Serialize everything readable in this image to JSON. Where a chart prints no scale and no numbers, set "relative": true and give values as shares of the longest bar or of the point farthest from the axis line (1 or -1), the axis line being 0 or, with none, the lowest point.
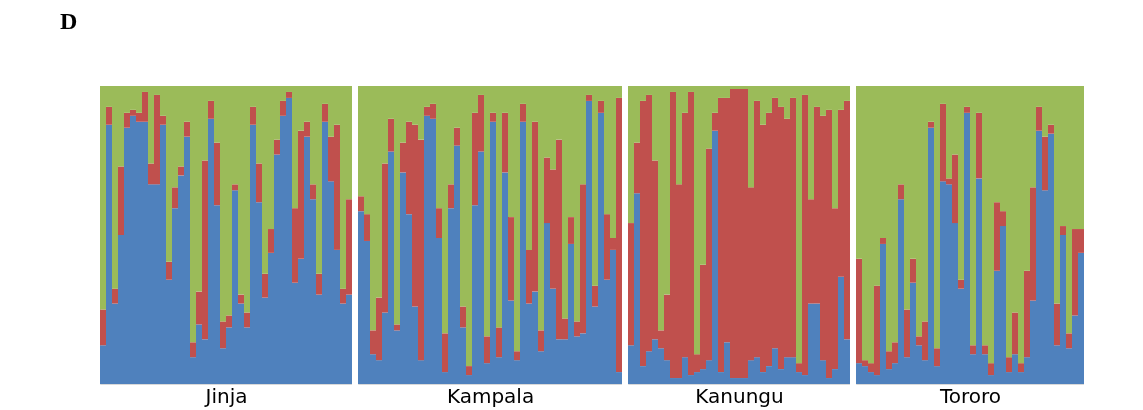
{
  "chart_data": [
    {
      "type": "bar",
      "title": "D",
      "xlabel": "Jinja",
      "stacked": true,
      "relative": true,
      "tick_labels": false,
      "categories": [
        null,
        null,
        null,
        null,
        null,
        null,
        null,
        null,
        null,
        null,
        null,
        null,
        null,
        null,
        null,
        null,
        null,
        null,
        null,
        null,
        null,
        null,
        null,
        null,
        null,
        null,
        null,
        null,
        null,
        null,
        null,
        null,
        null,
        null,
        null,
        null,
        null,
        null,
        null,
        null,
        null,
        null
      ],
      "series": [
        {
          "color": "#4f81bd",
          "values": [
            0.13,
            0.87,
            0.27,
            0.5,
            0.86,
            0.9,
            0.88,
            0.88,
            0.67,
            0.67,
            0.87,
            0.35,
            0.59,
            0.7,
            0.83,
            0.09,
            0.2,
            0.15,
            0.89,
            0.6,
            0.12,
            0.19,
            0.65,
            0.27,
            0.19,
            0.87,
            0.61,
            0.29,
            0.44,
            0.77,
            0.9,
            0.96,
            0.34,
            0.42,
            0.83,
            0.62,
            0.3,
            0.88,
            0.68,
            0.45,
            0.27,
            0.3
          ]
        },
        {
          "color": "#c0504d",
          "values": [
            0.12,
            0.06,
            0.05,
            0.23,
            0.05,
            0.02,
            0.03,
            0.1,
            0.07,
            0.3,
            0.03,
            0.06,
            0.07,
            0.03,
            0.05,
            0.05,
            0.11,
            0.6,
            0.06,
            0.21,
            0.09,
            0.04,
            0.02,
            0.03,
            0.05,
            0.06,
            0.13,
            0.08,
            0.08,
            0.05,
            0.05,
            0.02,
            0.25,
            0.43,
            0.05,
            0.05,
            0.07,
            0.06,
            0.15,
            0.42,
            0.05,
            0.32
          ]
        },
        {
          "color": "#9bbb59",
          "values": [
            0.75,
            0.07,
            0.68,
            0.27,
            0.09,
            0.08,
            0.09,
            0.02,
            0.26,
            0.03,
            0.1,
            0.59,
            0.34,
            0.27,
            0.12,
            0.86,
            0.69,
            0.25,
            0.05,
            0.19,
            0.79,
            0.77,
            0.33,
            0.7,
            0.76,
            0.07,
            0.26,
            0.63,
            0.48,
            0.18,
            0.05,
            0.02,
            0.41,
            0.15,
            0.12,
            0.33,
            0.63,
            0.06,
            0.17,
            0.13,
            0.68,
            0.38
          ]
        }
      ]
    },
    {
      "type": "bar",
      "xlabel": "Kampala",
      "stacked": true,
      "relative": true,
      "tick_labels": false,
      "categories": [
        null,
        null,
        null,
        null,
        null,
        null,
        null,
        null,
        null,
        null,
        null,
        null,
        null,
        null,
        null,
        null,
        null,
        null,
        null,
        null,
        null,
        null,
        null,
        null,
        null,
        null,
        null,
        null,
        null,
        null,
        null,
        null,
        null,
        null,
        null,
        null,
        null,
        null,
        null,
        null,
        null,
        null,
        null,
        null
      ],
      "series": [
        {
          "color": "#4f81bd",
          "values": [
            0.58,
            0.48,
            0.1,
            0.08,
            0.24,
            0.78,
            0.18,
            0.71,
            0.57,
            0.26,
            0.08,
            0.9,
            0.89,
            0.49,
            0.04,
            0.59,
            0.8,
            0.19,
            0.03,
            0.6,
            0.78,
            0.07,
            0.88,
            0.09,
            0.71,
            0.28,
            0.08,
            0.88,
            0.27,
            0.31,
            0.11,
            0.54,
            0.32,
            0.15,
            0.15,
            0.47,
            0.16,
            0.17,
            0.95,
            0.26,
            0.91,
            0.35,
            0.45,
            0.04
          ]
        },
        {
          "color": "#c0504d",
          "values": [
            0.05,
            0.09,
            0.08,
            0.21,
            0.5,
            0.11,
            0.02,
            0.1,
            0.31,
            0.61,
            0.74,
            0.03,
            0.05,
            0.1,
            0.13,
            0.08,
            0.06,
            0.07,
            0.03,
            0.31,
            0.19,
            0.09,
            0.03,
            0.1,
            0.2,
            0.28,
            0.03,
            0.06,
            0.18,
            0.57,
            0.07,
            0.22,
            0.4,
            0.67,
            0.07,
            0.09,
            0.05,
            0.5,
            0.02,
            0.07,
            0.04,
            0.22,
            0.04,
            0.92
          ]
        },
        {
          "color": "#9bbb59",
          "values": [
            0.37,
            0.43,
            0.82,
            0.71,
            0.26,
            0.11,
            0.8,
            0.19,
            0.12,
            0.13,
            0.18,
            0.07,
            0.06,
            0.41,
            0.83,
            0.33,
            0.14,
            0.74,
            0.94,
            0.09,
            0.03,
            0.84,
            0.09,
            0.81,
            0.09,
            0.44,
            0.89,
            0.06,
            0.55,
            0.12,
            0.82,
            0.24,
            0.28,
            0.18,
            0.78,
            0.44,
            0.79,
            0.33,
            0.03,
            0.67,
            0.05,
            0.43,
            0.51,
            0.04
          ]
        }
      ]
    },
    {
      "type": "bar",
      "xlabel": "Kanungu",
      "stacked": true,
      "relative": true,
      "tick_labels": false,
      "categories": [
        null,
        null,
        null,
        null,
        null,
        null,
        null,
        null,
        null,
        null,
        null,
        null,
        null,
        null,
        null,
        null,
        null,
        null,
        null,
        null,
        null,
        null,
        null,
        null,
        null,
        null,
        null,
        null,
        null,
        null,
        null,
        null,
        null,
        null,
        null,
        null,
        null
      ],
      "series": [
        {
          "color": "#4f81bd",
          "values": [
            0.13,
            0.64,
            0.06,
            0.11,
            0.15,
            0.12,
            0.08,
            0.02,
            0.02,
            0.09,
            0.03,
            0.04,
            0.05,
            0.08,
            0.85,
            0.04,
            0.14,
            0.02,
            0.02,
            0.02,
            0.08,
            0.09,
            0.04,
            0.06,
            0.12,
            0.05,
            0.09,
            0.09,
            0.04,
            0.03,
            0.27,
            0.27,
            0.08,
            0.02,
            0.05,
            0.36,
            0.15
          ]
        },
        {
          "color": "#c0504d",
          "values": [
            0.41,
            0.17,
            0.89,
            0.86,
            0.6,
            0.06,
            0.22,
            0.96,
            0.65,
            0.82,
            0.95,
            0.06,
            0.35,
            0.71,
            0.06,
            0.92,
            0.82,
            0.97,
            0.97,
            0.97,
            0.58,
            0.86,
            0.83,
            0.85,
            0.84,
            0.88,
            0.8,
            0.87,
            0.03,
            0.94,
            0.35,
            0.66,
            0.82,
            0.9,
            0.54,
            0.56,
            0.8
          ]
        },
        {
          "color": "#9bbb59",
          "values": [
            0.46,
            0.19,
            0.05,
            0.03,
            0.25,
            0.82,
            0.7,
            0.02,
            0.33,
            0.09,
            0.02,
            0.9,
            0.6,
            0.21,
            0.09,
            0.04,
            0.04,
            0.01,
            0.01,
            0.01,
            0.34,
            0.05,
            0.13,
            0.09,
            0.04,
            0.07,
            0.11,
            0.04,
            0.93,
            0.03,
            0.38,
            0.07,
            0.1,
            0.08,
            0.41,
            0.08,
            0.05
          ]
        }
      ]
    },
    {
      "type": "bar",
      "xlabel": "Tororo",
      "stacked": true,
      "relative": true,
      "tick_labels": false,
      "categories": [
        null,
        null,
        null,
        null,
        null,
        null,
        null,
        null,
        null,
        null,
        null,
        null,
        null,
        null,
        null,
        null,
        null,
        null,
        null,
        null,
        null,
        null,
        null,
        null,
        null,
        null,
        null,
        null,
        null,
        null,
        null,
        null,
        null,
        null,
        null,
        null,
        null,
        null
      ],
      "series": [
        {
          "color": "#4f81bd",
          "values": [
            0.07,
            0.06,
            0.04,
            0.03,
            0.47,
            0.05,
            0.07,
            0.62,
            0.09,
            0.34,
            0.13,
            0.08,
            0.86,
            0.06,
            0.68,
            0.67,
            0.54,
            0.32,
            0.91,
            0.1,
            0.69,
            0.1,
            0.03,
            0.38,
            0.53,
            0.04,
            0.1,
            0.04,
            0.09,
            0.28,
            0.85,
            0.65,
            0.84,
            0.13,
            0.5,
            0.12,
            0.23,
            0.44
          ]
        },
        {
          "color": "#c0504d",
          "values": [
            0.35,
            0.02,
            0.03,
            0.3,
            0.02,
            0.06,
            0.07,
            0.05,
            0.16,
            0.08,
            0.03,
            0.13,
            0.02,
            0.06,
            0.26,
            0.02,
            0.23,
            0.03,
            0.02,
            0.03,
            0.22,
            0.03,
            0.04,
            0.23,
            0.05,
            0.05,
            0.14,
            0.03,
            0.29,
            0.38,
            0.08,
            0.18,
            0.03,
            0.14,
            0.03,
            0.05,
            0.29,
            0.08
          ]
        },
        {
          "color": "#9bbb59",
          "values": [
            0.58,
            0.92,
            0.93,
            0.67,
            0.51,
            0.89,
            0.86,
            0.33,
            0.75,
            0.58,
            0.84,
            0.79,
            0.12,
            0.88,
            0.06,
            0.31,
            0.23,
            0.65,
            0.07,
            0.87,
            0.09,
            0.87,
            0.93,
            0.39,
            0.42,
            0.91,
            0.76,
            0.93,
            0.62,
            0.34,
            0.07,
            0.17,
            0.13,
            0.73,
            0.47,
            0.83,
            0.48,
            0.48
          ]
        }
      ]
    }
  ]
}
